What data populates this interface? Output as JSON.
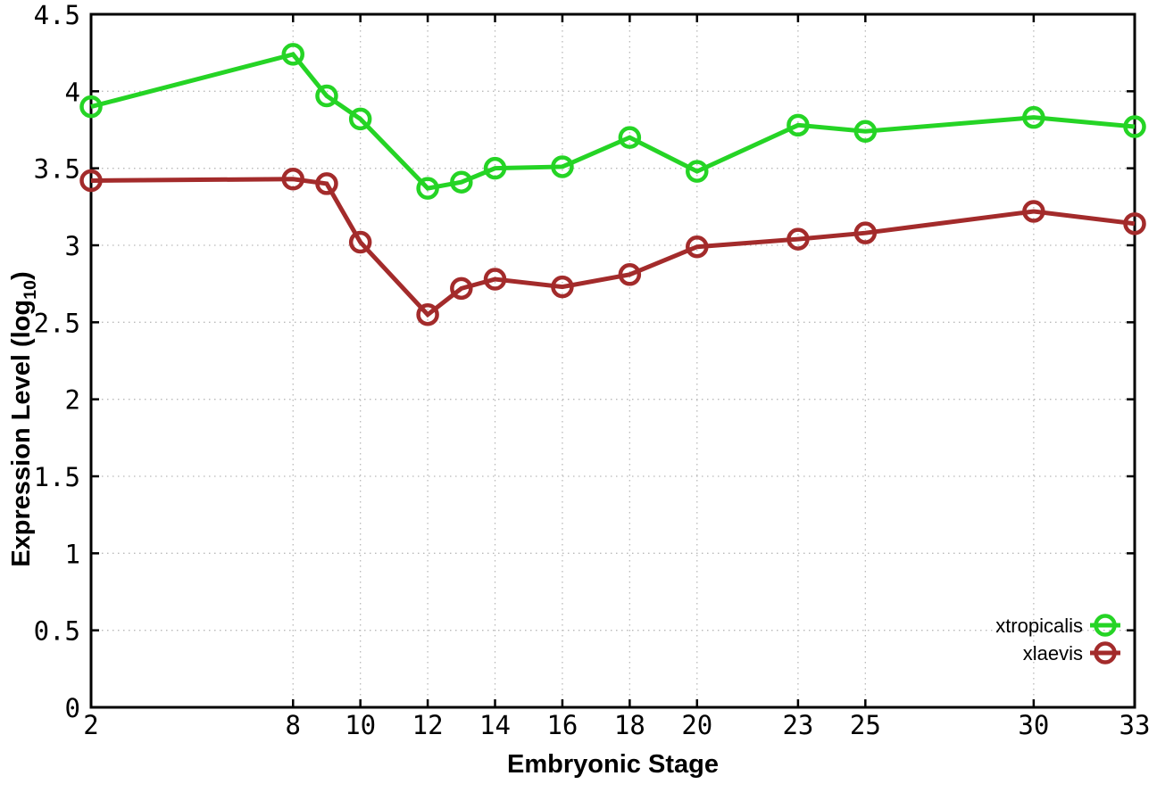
{
  "axes": {
    "xlabel": "Embryonic Stage",
    "ylabel_prefix": "Expression Level (log",
    "ylabel_sub": "10",
    "ylabel_suffix": ")"
  },
  "style": {
    "background": "#ffffff",
    "border_color": "#000000",
    "grid_color": "#b9b9b9",
    "text_color": "#000000"
  },
  "chart_data": {
    "type": "line",
    "title": "",
    "xlabel": "Embryonic Stage",
    "ylabel": "Expression Level (log10)",
    "xlim": [
      2,
      33
    ],
    "ylim": [
      0,
      4.5
    ],
    "x": [
      2,
      8,
      9,
      10,
      12,
      13,
      14,
      16,
      18,
      20,
      23,
      25,
      30,
      33
    ],
    "x_tick_labels": [
      "2",
      "8",
      "10",
      "12",
      "14",
      "16",
      "18",
      "20",
      "23",
      "25",
      "30",
      "33"
    ],
    "x_tick_values": [
      2,
      8,
      10,
      12,
      14,
      16,
      18,
      20,
      23,
      25,
      30,
      33
    ],
    "y_tick_labels": [
      "0",
      "0.5",
      "1",
      "1.5",
      "2",
      "2.5",
      "3",
      "3.5",
      "4",
      "4.5"
    ],
    "y_tick_values": [
      0,
      0.5,
      1,
      1.5,
      2,
      2.5,
      3,
      3.5,
      4,
      4.5
    ],
    "grid": true,
    "marker": "open-circle",
    "legend_position": "bottom-right",
    "series": [
      {
        "name": "xtropicalis",
        "color": "#25d425",
        "values": [
          3.9,
          4.24,
          3.97,
          3.82,
          3.37,
          3.41,
          3.5,
          3.51,
          3.7,
          3.48,
          3.78,
          3.74,
          3.83,
          3.77
        ]
      },
      {
        "name": "xlaevis",
        "color": "#a32b2b",
        "values": [
          3.42,
          3.43,
          3.4,
          3.02,
          2.55,
          2.72,
          2.78,
          2.73,
          2.81,
          2.99,
          3.04,
          3.08,
          3.22,
          3.14
        ]
      }
    ]
  }
}
